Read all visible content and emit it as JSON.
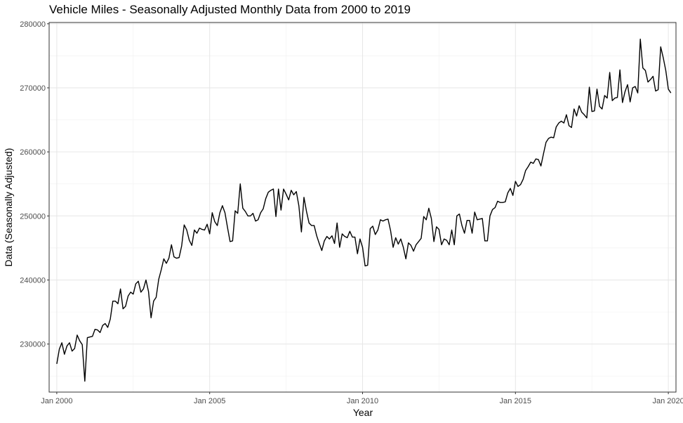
{
  "chart_data": {
    "type": "line",
    "title": "Vehicle Miles - Seasonally Adjusted Monthly Data from 2000 to 2019",
    "xlabel": "Year",
    "ylabel": "Data (Seasonally Adjusted)",
    "xlim": [
      "1999-10",
      "2020-04"
    ],
    "ylim": [
      222500,
      280200
    ],
    "grid": true,
    "x_ticks": [
      {
        "date": "2000-01",
        "label": "Jan 2000"
      },
      {
        "date": "2005-01",
        "label": "Jan 2005"
      },
      {
        "date": "2010-01",
        "label": "Jan 2010"
      },
      {
        "date": "2015-01",
        "label": "Jan 2015"
      },
      {
        "date": "2020-01",
        "label": "Jan 2020"
      }
    ],
    "y_ticks": [
      {
        "value": 230000,
        "label": "230000"
      },
      {
        "value": 240000,
        "label": "240000"
      },
      {
        "value": 250000,
        "label": "250000"
      },
      {
        "value": 260000,
        "label": "260000"
      },
      {
        "value": 270000,
        "label": "270000"
      },
      {
        "value": 280000,
        "label": "280000"
      }
    ],
    "line_color": "#000000",
    "series": [
      {
        "start": "2000-01",
        "frequency": "monthly",
        "values": [
          226900,
          229200,
          230200,
          228400,
          229700,
          230200,
          228900,
          229300,
          231400,
          230500,
          229900,
          224200,
          231000,
          231100,
          231200,
          232300,
          232200,
          231800,
          232900,
          233200,
          232600,
          233900,
          236700,
          236700,
          236300,
          238600,
          235500,
          235900,
          237500,
          238100,
          237800,
          239400,
          239800,
          238100,
          238600,
          240000,
          238200,
          234100,
          236700,
          237300,
          240100,
          241600,
          243300,
          242600,
          243400,
          245500,
          243600,
          243400,
          243500,
          245300,
          248600,
          247800,
          246200,
          245400,
          247800,
          247300,
          248100,
          247900,
          247800,
          248700,
          247200,
          250500,
          249100,
          248500,
          250500,
          251600,
          250500,
          248200,
          246000,
          246100,
          250800,
          250400,
          255000,
          251200,
          250700,
          250000,
          250000,
          250400,
          249200,
          249400,
          250500,
          251100,
          252700,
          253700,
          254000,
          254200,
          249900,
          254200,
          250900,
          254200,
          253400,
          252500,
          254000,
          253300,
          253800,
          251600,
          247500,
          252900,
          250700,
          248900,
          248500,
          248500,
          246900,
          245700,
          244600,
          246100,
          246800,
          246400,
          246900,
          245700,
          248900,
          245100,
          247200,
          246800,
          246600,
          247600,
          246700,
          246700,
          244100,
          246400,
          245100,
          242200,
          242300,
          248000,
          248400,
          247100,
          247800,
          249400,
          249200,
          249400,
          249500,
          247700,
          245100,
          246600,
          245600,
          246400,
          245100,
          243300,
          245800,
          245400,
          244500,
          245500,
          246000,
          246500,
          249900,
          249400,
          251200,
          249600,
          246000,
          248300,
          247900,
          245500,
          246400,
          246200,
          245500,
          247800,
          245500,
          250000,
          250300,
          248500,
          247300,
          249300,
          249300,
          247300,
          250600,
          249400,
          249500,
          249600,
          246100,
          246100,
          250000,
          251000,
          251300,
          252300,
          252100,
          252100,
          252200,
          253600,
          254300,
          253200,
          255400,
          254600,
          254900,
          255700,
          257100,
          257700,
          258400,
          258200,
          258900,
          258800,
          257800,
          259700,
          261500,
          262100,
          262300,
          262200,
          263900,
          264500,
          264800,
          264500,
          265800,
          264100,
          263800,
          266700,
          265600,
          267200,
          266200,
          265800,
          265300,
          270100,
          266300,
          266400,
          269800,
          267100,
          266700,
          268800,
          268400,
          272400,
          268000,
          268400,
          268500,
          272800,
          267700,
          269400,
          270500,
          267800,
          270000,
          270200,
          269200,
          277600,
          273100,
          272700,
          270900,
          271300,
          271800,
          269500,
          269700,
          276400,
          274700,
          272700,
          269800,
          269200
        ]
      }
    ]
  }
}
